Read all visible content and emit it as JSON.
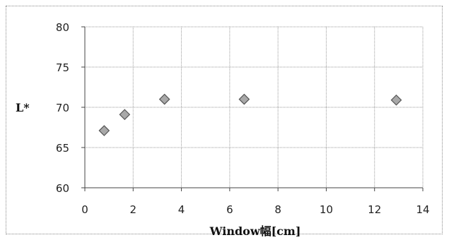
{
  "chart_data": {
    "type": "scatter",
    "title": "",
    "xlabel": "Window幅[cm]",
    "ylabel": "L*",
    "xlim": [
      0,
      14
    ],
    "ylim": [
      60,
      80
    ],
    "xticks": [
      "0",
      "2",
      "4",
      "6",
      "8",
      "10",
      "12",
      "14"
    ],
    "yticks": [
      "60",
      "65",
      "70",
      "75",
      "80"
    ],
    "grid": true,
    "legend": "none",
    "marker": "diamond",
    "series": [
      {
        "x": [
          0.8,
          1.65,
          3.3,
          6.6,
          12.9
        ],
        "y": [
          67.1,
          69.1,
          71.0,
          71.0,
          70.9
        ]
      }
    ],
    "colors": {
      "marker_fill": "#a8a8a8",
      "marker_edge": "#555555",
      "grid": "#9a9a9a",
      "axis": "#444444"
    }
  }
}
